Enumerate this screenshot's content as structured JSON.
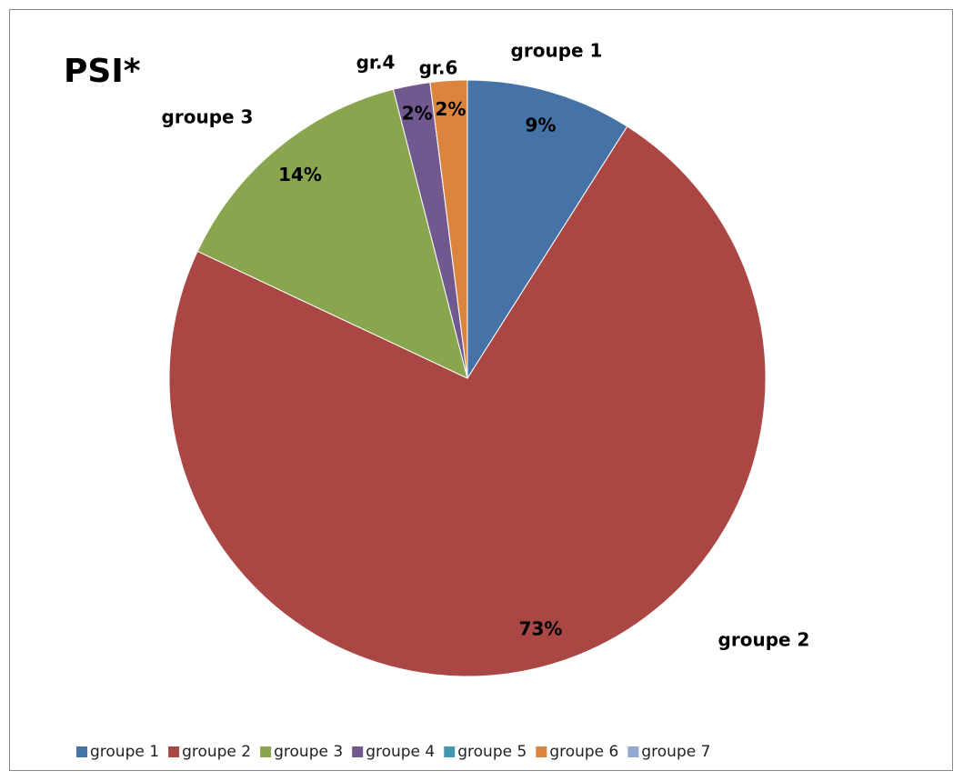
{
  "chart_data": {
    "type": "pie",
    "title": "PSI*",
    "categories": [
      "groupe 1",
      "groupe 2",
      "groupe 3",
      "groupe 4",
      "groupe 5",
      "groupe 6",
      "groupe 7"
    ],
    "values": [
      9,
      73,
      14,
      2,
      0,
      2,
      0
    ],
    "value_labels": [
      "9%",
      "73%",
      "14%",
      "2%",
      null,
      "2%",
      null
    ],
    "slice_labels": [
      "groupe 1",
      "groupe 2",
      "groupe 3",
      "gr.4",
      null,
      "gr.6",
      null
    ],
    "colors": [
      "#4572a7",
      "#aa4643",
      "#89a54e",
      "#71588f",
      "#4198af",
      "#db843d",
      "#93a9cf"
    ],
    "legend": "bottom"
  }
}
